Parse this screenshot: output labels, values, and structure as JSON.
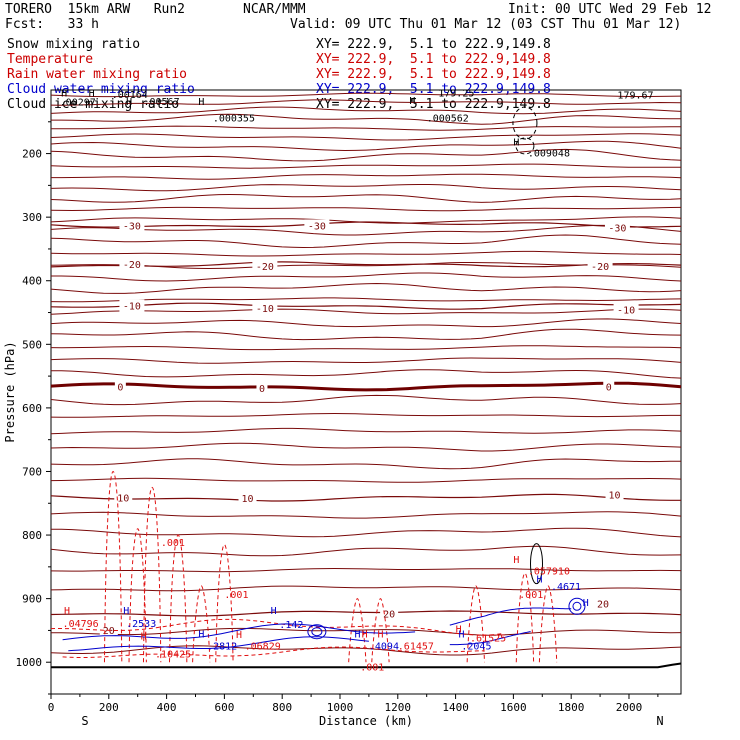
{
  "header": {
    "model": "TORERO  15km ARW   Run2",
    "org": "NCAR/MMM",
    "init": "Init: 00 UTC Wed 29 Feb 12",
    "fcst": "Fcst:   33 h",
    "valid": "Valid: 09 UTC Thu 01 Mar 12 (03 CST Thu 01 Mar 12)"
  },
  "legend": [
    {
      "name": "Snow mixing ratio",
      "xy": "XY= 222.9,  5.1 to 222.9,149.8",
      "color": "#000000"
    },
    {
      "name": "Temperature",
      "xy": "XY= 222.9,  5.1 to 222.9,149.8",
      "color": "#cc0000"
    },
    {
      "name": "Rain water mixing ratio",
      "xy": "XY= 222.9,  5.1 to 222.9,149.8",
      "color": "#cc0000"
    },
    {
      "name": "Cloud water mixing ratio",
      "xy": "XY= 222.9,  5.1 to 222.9,149.8",
      "color": "#0000cc"
    },
    {
      "name": "Cloud ice mixing ratio",
      "xy": "XY= 222.9,  5.1 to 222.9,149.8",
      "color": "#000000"
    }
  ],
  "colors": {
    "temperature": "#7a0a0a",
    "temperature_zero": "#6e0000",
    "rain": "#e01010",
    "cloud_water": "#0000cc",
    "ice": "#000000"
  },
  "chart_data": {
    "type": "cross-section contour",
    "xlabel": "Distance (km)",
    "ylabel": "Pressure (hPa)",
    "xlim": [
      0,
      2180
    ],
    "ylim": [
      100,
      1050
    ],
    "x_ticks": [
      0,
      200,
      400,
      600,
      800,
      1000,
      1200,
      1400,
      1600,
      1800,
      2000
    ],
    "y_ticks": [
      200,
      300,
      400,
      500,
      600,
      700,
      800,
      900,
      1000
    ],
    "end_labels": {
      "left": "S",
      "right": "N"
    },
    "temperature_contours": [
      {
        "label": "-30",
        "pressure": 312,
        "label_x": [
          280,
          920,
          1960
        ]
      },
      {
        "label": "-20",
        "pressure": 375,
        "label_x": [
          280,
          740,
          1900
        ]
      },
      {
        "label": "-10",
        "pressure": 440,
        "label_x": [
          280,
          740,
          1990
        ]
      },
      {
        "label": "0",
        "pressure": 567,
        "label_x": [
          240,
          730,
          1930
        ]
      },
      {
        "label": "10",
        "pressure": 742,
        "label_x": [
          250,
          680,
          1950
        ]
      },
      {
        "label": "20",
        "pressure": 923,
        "label_x": [
          200,
          1170,
          1910
        ]
      }
    ],
    "temperature_labels": [
      {
        "text": "-30",
        "x": 280,
        "p": 313
      },
      {
        "text": "-30",
        "x": 920,
        "p": 313
      },
      {
        "text": "-30",
        "x": 1960,
        "p": 316
      },
      {
        "text": "-20",
        "x": 280,
        "p": 374
      },
      {
        "text": "-20",
        "x": 740,
        "p": 377
      },
      {
        "text": "-20",
        "x": 1900,
        "p": 377
      },
      {
        "text": "-10",
        "x": 280,
        "p": 439
      },
      {
        "text": "-10",
        "x": 740,
        "p": 443
      },
      {
        "text": "-10",
        "x": 1990,
        "p": 445
      },
      {
        "text": "0",
        "x": 240,
        "p": 566
      },
      {
        "text": "0",
        "x": 730,
        "p": 569
      },
      {
        "text": "0",
        "x": 1930,
        "p": 566
      },
      {
        "text": "10",
        "x": 250,
        "p": 741
      },
      {
        "text": "10",
        "x": 680,
        "p": 742
      },
      {
        "text": "10",
        "x": 1950,
        "p": 736
      },
      {
        "text": "20",
        "x": 200,
        "p": 949
      },
      {
        "text": "20",
        "x": 1170,
        "p": 923
      },
      {
        "text": "20",
        "x": 1910,
        "p": 908
      }
    ],
    "rain_labels": [
      {
        "text": ".001",
        "x": 380,
        "p": 811
      },
      {
        "text": ".001",
        "x": 600,
        "p": 893
      },
      {
        "text": ".001",
        "x": 1620,
        "p": 893
      },
      {
        "text": ".001",
        "x": 1070,
        "p": 1007
      },
      {
        "text": "H",
        "x": 45,
        "p": 918
      },
      {
        "text": ".04796",
        "x": 40,
        "p": 938
      },
      {
        "text": "H",
        "x": 310,
        "p": 958
      },
      {
        "text": ".10425",
        "x": 360,
        "p": 986
      },
      {
        "text": "H",
        "x": 640,
        "p": 956
      },
      {
        "text": ".06829",
        "x": 670,
        "p": 974
      },
      {
        "text": "H",
        "x": 1075,
        "p": 955
      },
      {
        "text": "H",
        "x": 1130,
        "p": 955
      },
      {
        "text": ".61457",
        "x": 1200,
        "p": 974
      },
      {
        "text": "H",
        "x": 1400,
        "p": 947
      },
      {
        "text": ".61525",
        "x": 1450,
        "p": 961
      },
      {
        "text": "H",
        "x": 1600,
        "p": 838
      },
      {
        "text": ".057910",
        "x": 1650,
        "p": 856
      }
    ],
    "cloud_water_labels": [
      {
        "text": "H",
        "x": 250,
        "p": 918
      },
      {
        "text": ".2533",
        "x": 260,
        "p": 938
      },
      {
        "text": "H",
        "x": 510,
        "p": 955
      },
      {
        "text": ".2812",
        "x": 540,
        "p": 974
      },
      {
        "text": "H",
        "x": 760,
        "p": 918
      },
      {
        "text": ".142",
        "x": 790,
        "p": 940
      },
      {
        "text": "H",
        "x": 1050,
        "p": 955
      },
      {
        "text": ".4094",
        "x": 1100,
        "p": 974
      },
      {
        "text": "H",
        "x": 1410,
        "p": 955
      },
      {
        "text": ".2045",
        "x": 1420,
        "p": 974
      },
      {
        "text": "H",
        "x": 1680,
        "p": 868
      },
      {
        "text": ".4671",
        "x": 1730,
        "p": 880
      },
      {
        "text": "H",
        "x": 1840,
        "p": 905
      }
    ],
    "ice_labels": [
      {
        "text": "H",
        "x": 35,
        "p": 104
      },
      {
        "text": ".00297",
        "x": 30,
        "p": 118
      },
      {
        "text": "H",
        "x": 130,
        "p": 104
      },
      {
        "text": ".00164",
        "x": 210,
        "p": 106
      },
      {
        "text": "H",
        "x": 260,
        "p": 117
      },
      {
        "text": ".00567",
        "x": 320,
        "p": 117
      },
      {
        "text": "H",
        "x": 510,
        "p": 117
      },
      {
        "text": ".000355",
        "x": 560,
        "p": 143
      },
      {
        "text": "H",
        "x": 1240,
        "p": 116
      },
      {
        "text": ".000562",
        "x": 1300,
        "p": 143
      },
      {
        "text": "H",
        "x": 1600,
        "p": 181
      },
      {
        "text": ".009048",
        "x": 1650,
        "p": 198
      },
      {
        "text": "179.67",
        "x": 1960,
        "p": 107
      },
      {
        "text": "179.25",
        "x": 1340,
        "p": 104
      }
    ]
  }
}
